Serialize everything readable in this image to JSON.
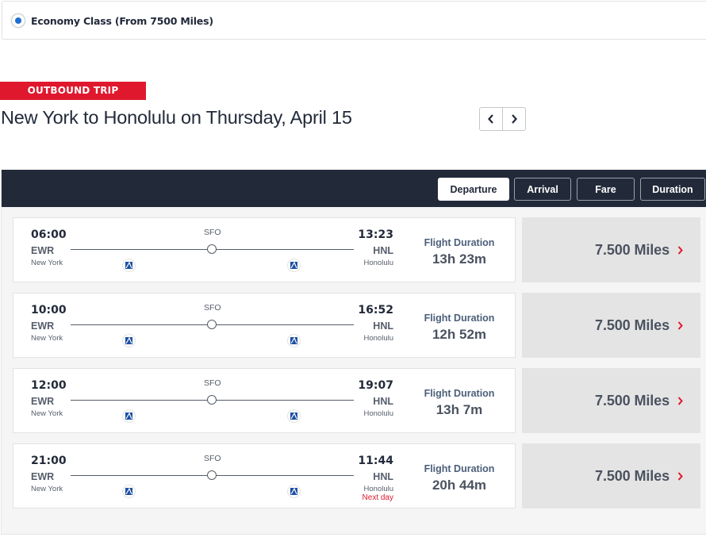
{
  "fare_class": {
    "label": "Economy Class (From 7500 Miles)",
    "selected": true
  },
  "trip": {
    "tag": "OUTBOUND TRIP",
    "title": "New York to Honolulu on Thursday, April 15"
  },
  "sort": {
    "options": [
      {
        "label": "Departure",
        "active": true
      },
      {
        "label": "Arrival",
        "active": false
      },
      {
        "label": "Fare",
        "active": false
      },
      {
        "label": "Duration",
        "active": false
      }
    ]
  },
  "duration_label": "Flight Duration",
  "flights": [
    {
      "dep_time": "06:00",
      "dep_code": "EWR",
      "dep_city": "New York",
      "stop": "SFO",
      "arr_time": "13:23",
      "arr_code": "HNL",
      "arr_city": "Honolulu",
      "next_day": "",
      "duration": "13h 23m",
      "price": "7.500 Miles"
    },
    {
      "dep_time": "10:00",
      "dep_code": "EWR",
      "dep_city": "New York",
      "stop": "SFO",
      "arr_time": "16:52",
      "arr_code": "HNL",
      "arr_city": "Honolulu",
      "next_day": "",
      "duration": "12h 52m",
      "price": "7.500 Miles"
    },
    {
      "dep_time": "12:00",
      "dep_code": "EWR",
      "dep_city": "New York",
      "stop": "SFO",
      "arr_time": "19:07",
      "arr_code": "HNL",
      "arr_city": "Honolulu",
      "next_day": "",
      "duration": "13h 7m",
      "price": "7.500 Miles"
    },
    {
      "dep_time": "21:00",
      "dep_code": "EWR",
      "dep_city": "New York",
      "stop": "SFO",
      "arr_time": "11:44",
      "arr_code": "HNL",
      "arr_city": "Honolulu",
      "next_day": "Next day",
      "duration": "20h 44m",
      "price": "7.500 Miles"
    }
  ],
  "icons": {
    "prev": "chevron-left-icon",
    "next": "chevron-right-icon",
    "airline": "airline-logo-icon",
    "price_arrow": "chevron-right-icon"
  },
  "colors": {
    "accent": "#e0182d",
    "header": "#222a3a",
    "radio": "#1f6fd1"
  }
}
